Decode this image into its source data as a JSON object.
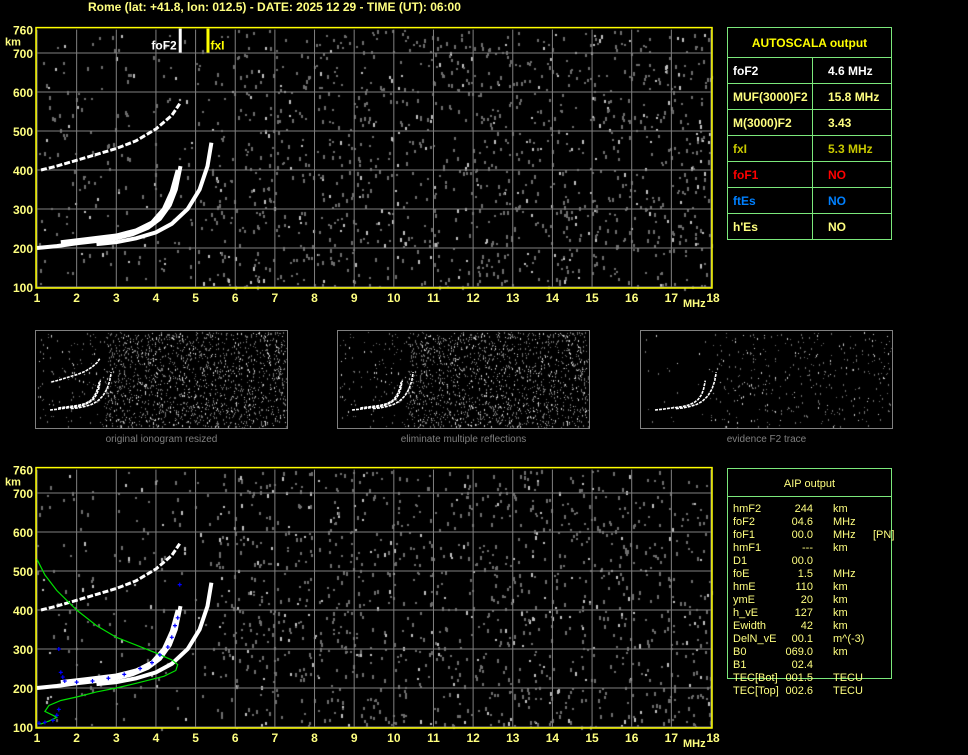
{
  "title": "Rome (lat: +41.8, lon: 012.5) - DATE: 2025 12 29 - TIME (UT): 06:00",
  "colors": {
    "axis": "#ffff00",
    "label": "#ffff80",
    "grid": "#808080",
    "table_border": "#7be87b",
    "foF1": "#ff0000",
    "ftEs": "#0080ff",
    "fxI": "#c8c800",
    "profile": "#00e000",
    "points": "#0000ff"
  },
  "chart_data": [
    {
      "type": "scatter",
      "panel": "top-ionogram",
      "xlabel": "MHz",
      "ylabel": "km",
      "xlim": [
        1,
        18
      ],
      "ylim": [
        100,
        760
      ],
      "xticks": [
        "1",
        "2",
        "3",
        "4",
        "5",
        "6",
        "7",
        "8",
        "9",
        "10",
        "11",
        "12",
        "13",
        "14",
        "15",
        "16",
        "17",
        "18"
      ],
      "yticks": [
        "100",
        "200",
        "300",
        "400",
        "500",
        "600",
        "700",
        "760"
      ],
      "grid": true,
      "markers": [
        {
          "label": "foF2",
          "freq": 4.6,
          "color": "#ffffff"
        },
        {
          "label": "fxI",
          "freq": 5.3,
          "color": "#ffff00"
        }
      ],
      "traces": [
        {
          "kind": "o-trace",
          "points": [
            [
              1,
              200
            ],
            [
              1.5,
              205
            ],
            [
              2,
              212
            ],
            [
              2.5,
              218
            ],
            [
              3,
              225
            ],
            [
              3.4,
              235
            ],
            [
              3.8,
              252
            ],
            [
              4.1,
              275
            ],
            [
              4.35,
              310
            ],
            [
              4.5,
              350
            ],
            [
              4.62,
              410
            ]
          ]
        },
        {
          "kind": "o-trace-2",
          "points": [
            [
              1.6,
              215
            ],
            [
              2.2,
              222
            ],
            [
              3,
              232
            ],
            [
              3.5,
              245
            ],
            [
              3.9,
              265
            ],
            [
              4.2,
              300
            ],
            [
              4.4,
              345
            ],
            [
              4.55,
              400
            ]
          ]
        },
        {
          "kind": "x-trace",
          "points": [
            [
              2.5,
              210
            ],
            [
              3,
              215
            ],
            [
              3.5,
              225
            ],
            [
              4,
              240
            ],
            [
              4.4,
              262
            ],
            [
              4.8,
              300
            ],
            [
              5.1,
              350
            ],
            [
              5.3,
              410
            ],
            [
              5.4,
              470
            ]
          ]
        },
        {
          "kind": "multiple-hop",
          "points": [
            [
              1.1,
              400
            ],
            [
              1.5,
              410
            ],
            [
              2,
              425
            ],
            [
              2.5,
              440
            ],
            [
              3,
              455
            ],
            [
              3.5,
              475
            ],
            [
              4,
              505
            ],
            [
              4.4,
              540
            ],
            [
              4.6,
              570
            ]
          ]
        }
      ]
    },
    {
      "type": "scatter",
      "panel": "bottom-ionogram",
      "xlabel": "MHz",
      "ylabel": "km",
      "xlim": [
        1,
        18
      ],
      "ylim": [
        100,
        760
      ],
      "xticks": [
        "1",
        "2",
        "3",
        "4",
        "5",
        "6",
        "7",
        "8",
        "9",
        "10",
        "11",
        "12",
        "13",
        "14",
        "15",
        "16",
        "17",
        "18"
      ],
      "yticks": [
        "100",
        "200",
        "300",
        "400",
        "500",
        "600",
        "700",
        "760"
      ],
      "grid": true,
      "profile": [
        [
          1,
          530
        ],
        [
          1.2,
          490
        ],
        [
          1.5,
          450
        ],
        [
          2,
          400
        ],
        [
          2.5,
          360
        ],
        [
          3,
          330
        ],
        [
          3.5,
          310
        ],
        [
          4,
          290
        ],
        [
          4.4,
          272
        ],
        [
          4.55,
          260
        ],
        [
          4.5,
          245
        ],
        [
          4.2,
          230
        ],
        [
          3.5,
          212
        ],
        [
          3,
          200
        ],
        [
          2.5,
          190
        ],
        [
          2,
          177
        ],
        [
          1.6,
          168
        ],
        [
          1.3,
          155
        ],
        [
          1.2,
          140
        ],
        [
          1.4,
          130
        ],
        [
          1.5,
          125
        ],
        [
          1.3,
          115
        ],
        [
          1.1,
          108
        ],
        [
          1,
          110
        ]
      ],
      "points": [
        [
          1.05,
          110
        ],
        [
          1.2,
          112
        ],
        [
          1.4,
          117
        ],
        [
          1.5,
          130
        ],
        [
          1.55,
          145
        ],
        [
          1.55,
          300
        ],
        [
          1.6,
          240
        ],
        [
          1.65,
          228
        ],
        [
          1.7,
          218
        ],
        [
          2,
          215
        ],
        [
          2.4,
          218
        ],
        [
          2.8,
          225
        ],
        [
          3.2,
          235
        ],
        [
          3.6,
          250
        ],
        [
          3.9,
          265
        ],
        [
          4.1,
          285
        ],
        [
          4.3,
          305
        ],
        [
          4.4,
          330
        ],
        [
          4.48,
          360
        ],
        [
          4.55,
          380
        ],
        [
          4.6,
          465
        ]
      ]
    }
  ],
  "autoscala": {
    "title": "AUTOSCALA output",
    "rows": [
      {
        "label": "foF2",
        "value": "4.6 MHz",
        "color": "#ffffff"
      },
      {
        "label": "MUF(3000)F2",
        "value": "15.8 MHz",
        "color": "#ffff80"
      },
      {
        "label": "M(3000)F2",
        "value": "3.43",
        "color": "#ffff80"
      },
      {
        "label": "fxI",
        "value": "5.3 MHz",
        "color": "#c8c800"
      },
      {
        "label": "foF1",
        "value": "NO",
        "color": "#ff0000"
      },
      {
        "label": "ftEs",
        "value": "NO",
        "color": "#0080ff"
      },
      {
        "label": "h'Es",
        "value": "NO",
        "color": "#ffff80"
      }
    ]
  },
  "thumbnails": [
    {
      "caption": "original ionogram resized"
    },
    {
      "caption": "eliminate multiple reflections"
    },
    {
      "caption": "evidence F2 trace"
    }
  ],
  "aip": {
    "title": "AIP output",
    "rows": [
      {
        "name": "hmF2",
        "value": "244",
        "unit": "km",
        "note": ""
      },
      {
        "name": "foF2",
        "value": "04.6",
        "unit": "MHz",
        "note": ""
      },
      {
        "name": "foF1",
        "value": "00.0",
        "unit": "MHz",
        "note": "[PN]"
      },
      {
        "name": "hmF1",
        "value": "---",
        "unit": "km",
        "note": ""
      },
      {
        "name": "D1",
        "value": "00.0",
        "unit": "",
        "note": ""
      },
      {
        "name": "foE",
        "value": "1.5",
        "unit": "MHz",
        "note": ""
      },
      {
        "name": "hmE",
        "value": "110",
        "unit": "km",
        "note": ""
      },
      {
        "name": "ymE",
        "value": "20",
        "unit": "km",
        "note": ""
      },
      {
        "name": "h_vE",
        "value": "127",
        "unit": "km",
        "note": ""
      },
      {
        "name": "Ewidth",
        "value": "42",
        "unit": "km",
        "note": ""
      },
      {
        "name": "DelN_vE",
        "value": "00.1",
        "unit": "m^(-3)",
        "note": ""
      },
      {
        "name": "B0",
        "value": "069.0",
        "unit": "km",
        "note": ""
      },
      {
        "name": "B1",
        "value": "02.4",
        "unit": "",
        "note": ""
      },
      {
        "name": "TEC[Bot]",
        "value": "001.5",
        "unit": "TECU",
        "note": ""
      },
      {
        "name": "TEC[Top]",
        "value": "002.6",
        "unit": "TECU",
        "note": ""
      }
    ]
  }
}
